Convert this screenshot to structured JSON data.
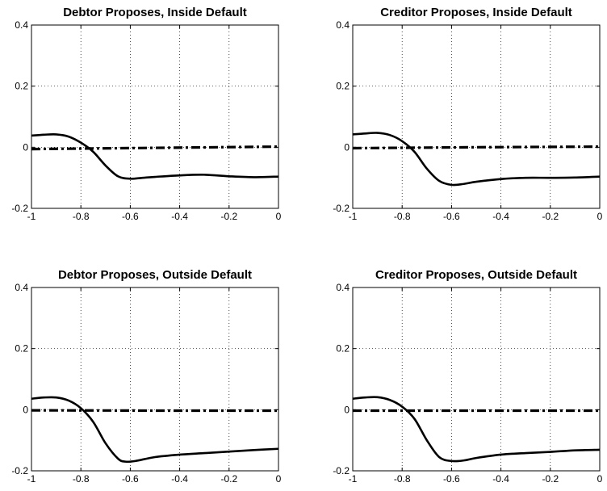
{
  "chart_data": [
    {
      "type": "line",
      "title": "Debtor Proposes, Inside Default",
      "xlim": [
        -1,
        0
      ],
      "ylim": [
        -0.2,
        0.4
      ],
      "xticks": [
        "-1",
        "-0.8",
        "-0.6",
        "-0.4",
        "-0.2",
        "0"
      ],
      "yticks": [
        "-0.2",
        "0",
        "0.2",
        "0.4"
      ],
      "grid": true,
      "series": [
        {
          "style": "solid",
          "x": [
            -1,
            -0.95,
            -0.9,
            -0.85,
            -0.8,
            -0.75,
            -0.7,
            -0.65,
            -0.6,
            -0.55,
            -0.5,
            -0.4,
            -0.3,
            -0.2,
            -0.1,
            0
          ],
          "y": [
            0.038,
            0.041,
            0.042,
            0.035,
            0.015,
            -0.015,
            -0.06,
            -0.095,
            -0.103,
            -0.1,
            -0.097,
            -0.092,
            -0.09,
            -0.095,
            -0.098,
            -0.096
          ]
        },
        {
          "style": "dash-dot",
          "x": [
            -1,
            -0.5,
            0
          ],
          "y": [
            -0.006,
            -0.002,
            0.002
          ]
        }
      ]
    },
    {
      "type": "line",
      "title": "Creditor Proposes, Inside Default",
      "xlim": [
        -1,
        0
      ],
      "ylim": [
        -0.2,
        0.4
      ],
      "xticks": [
        "-1",
        "-0.8",
        "-0.6",
        "-0.4",
        "-0.2",
        "0"
      ],
      "yticks": [
        "-0.2",
        "0",
        "0.2",
        "0.4"
      ],
      "grid": true,
      "series": [
        {
          "style": "solid",
          "x": [
            -1,
            -0.95,
            -0.9,
            -0.85,
            -0.8,
            -0.75,
            -0.7,
            -0.65,
            -0.6,
            -0.55,
            -0.5,
            -0.4,
            -0.3,
            -0.2,
            -0.1,
            0
          ],
          "y": [
            0.042,
            0.045,
            0.047,
            0.04,
            0.02,
            -0.015,
            -0.07,
            -0.11,
            -0.123,
            -0.12,
            -0.113,
            -0.104,
            -0.1,
            -0.1,
            -0.099,
            -0.096
          ]
        },
        {
          "style": "dash-dot",
          "x": [
            -1,
            -0.5,
            0
          ],
          "y": [
            -0.003,
            0,
            0.002
          ]
        }
      ]
    },
    {
      "type": "line",
      "title": "Debtor Proposes, Outside Default",
      "xlim": [
        -1,
        0
      ],
      "ylim": [
        -0.2,
        0.4
      ],
      "xticks": [
        "-1",
        "-0.8",
        "-0.6",
        "-0.4",
        "-0.2",
        "0"
      ],
      "yticks": [
        "-0.2",
        "0",
        "0.2",
        "0.4"
      ],
      "grid": true,
      "series": [
        {
          "style": "solid",
          "x": [
            -1,
            -0.95,
            -0.9,
            -0.85,
            -0.8,
            -0.75,
            -0.7,
            -0.65,
            -0.62,
            -0.58,
            -0.5,
            -0.4,
            -0.3,
            -0.2,
            -0.1,
            0
          ],
          "y": [
            0.036,
            0.04,
            0.04,
            0.03,
            0.005,
            -0.04,
            -0.11,
            -0.16,
            -0.17,
            -0.168,
            -0.155,
            -0.147,
            -0.142,
            -0.137,
            -0.132,
            -0.128
          ]
        },
        {
          "style": "dash-dot",
          "x": [
            -1,
            -0.5,
            0
          ],
          "y": [
            -0.002,
            -0.003,
            -0.003
          ]
        }
      ]
    },
    {
      "type": "line",
      "title": "Creditor Proposes, Outside Default",
      "xlim": [
        -1,
        0
      ],
      "ylim": [
        -0.2,
        0.4
      ],
      "xticks": [
        "-1",
        "-0.8",
        "-0.6",
        "-0.4",
        "-0.2",
        "0"
      ],
      "yticks": [
        "-0.2",
        "0",
        "0.2",
        "0.4"
      ],
      "grid": true,
      "series": [
        {
          "style": "solid",
          "x": [
            -1,
            -0.95,
            -0.9,
            -0.85,
            -0.8,
            -0.75,
            -0.7,
            -0.65,
            -0.6,
            -0.55,
            -0.5,
            -0.4,
            -0.3,
            -0.2,
            -0.1,
            0
          ],
          "y": [
            0.036,
            0.04,
            0.041,
            0.032,
            0.01,
            -0.03,
            -0.1,
            -0.155,
            -0.168,
            -0.166,
            -0.158,
            -0.147,
            -0.142,
            -0.138,
            -0.133,
            -0.131
          ]
        },
        {
          "style": "dash-dot",
          "x": [
            -1,
            -0.5,
            0
          ],
          "y": [
            -0.003,
            -0.003,
            -0.003
          ]
        }
      ]
    }
  ],
  "colors": {
    "line": "#000000",
    "grid": "#000000",
    "background": "#ffffff"
  }
}
